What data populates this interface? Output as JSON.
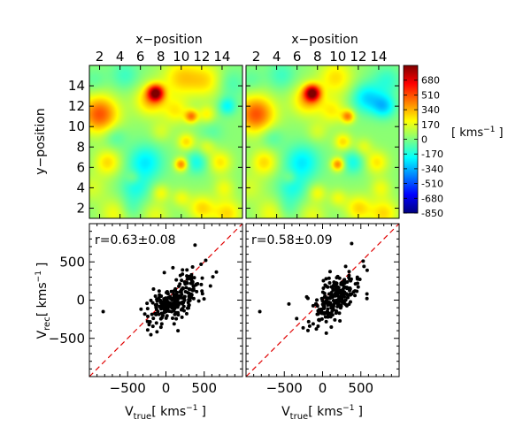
{
  "figure_size": "600x500",
  "colormap_colors": [
    "#00007f",
    "#0000ff",
    "#007fff",
    "#00ffff",
    "#7fff7f",
    "#ffff00",
    "#ff7f00",
    "#ff0000",
    "#7f0000"
  ],
  "mark_color": "#000000",
  "line_color": "#e00000",
  "chart_data": [
    {
      "type": "heatmap",
      "name": "velocity-map-left",
      "title": "",
      "xlabel": "x−position",
      "ylabel": "y−position",
      "xlim": [
        1,
        16
      ],
      "ylim": [
        1,
        16
      ],
      "xticks": [
        "2",
        "4",
        "6",
        "8",
        "10",
        "12",
        "14"
      ],
      "yticks": [
        "2",
        "4",
        "6",
        "8",
        "10",
        "12",
        "14"
      ],
      "blobs": [
        {
          "x": 2.0,
          "y": 11.2,
          "v": 480,
          "s": 1.3
        },
        {
          "x": 7.5,
          "y": 13.3,
          "v": 700,
          "s": 0.55
        },
        {
          "x": 7.0,
          "y": 12.6,
          "v": 300,
          "s": 1.1
        },
        {
          "x": 10.0,
          "y": 14.8,
          "v": 260,
          "s": 1.3
        },
        {
          "x": 12.5,
          "y": 14.5,
          "v": 220,
          "s": 1.2
        },
        {
          "x": 9.5,
          "y": 11.5,
          "v": 200,
          "s": 0.9
        },
        {
          "x": 11.0,
          "y": 11.0,
          "v": 380,
          "s": 0.45
        },
        {
          "x": 12.5,
          "y": 11.2,
          "v": 200,
          "s": 0.6
        },
        {
          "x": 14.5,
          "y": 12.0,
          "v": -230,
          "s": 0.6
        },
        {
          "x": 14.8,
          "y": 14.2,
          "v": -120,
          "s": 1.0
        },
        {
          "x": 4.5,
          "y": 15.0,
          "v": -130,
          "s": 1.0
        },
        {
          "x": 1.5,
          "y": 14.5,
          "v": -80,
          "s": 0.8
        },
        {
          "x": 2.8,
          "y": 6.5,
          "v": 250,
          "s": 0.9
        },
        {
          "x": 1.3,
          "y": 4.0,
          "v": 120,
          "s": 1.0
        },
        {
          "x": 5.3,
          "y": 5.0,
          "v": 120,
          "s": 0.5
        },
        {
          "x": 6.5,
          "y": 6.5,
          "v": -260,
          "s": 1.2
        },
        {
          "x": 5.5,
          "y": 4.0,
          "v": -180,
          "s": 1.0
        },
        {
          "x": 3.5,
          "y": 9.0,
          "v": -120,
          "s": 0.8
        },
        {
          "x": 10.0,
          "y": 6.3,
          "v": 420,
          "s": 0.45
        },
        {
          "x": 10.5,
          "y": 8.5,
          "v": 250,
          "s": 0.6
        },
        {
          "x": 11.5,
          "y": 6.5,
          "v": -200,
          "s": 0.8
        },
        {
          "x": 12.5,
          "y": 8.0,
          "v": 150,
          "s": 0.6
        },
        {
          "x": 13.8,
          "y": 6.5,
          "v": 230,
          "s": 0.8
        },
        {
          "x": 8.0,
          "y": 3.5,
          "v": 180,
          "s": 0.6
        },
        {
          "x": 10.0,
          "y": 3.0,
          "v": 160,
          "s": 0.6
        },
        {
          "x": 14.2,
          "y": 4.0,
          "v": 160,
          "s": 0.7
        },
        {
          "x": 12.0,
          "y": 2.0,
          "v": 250,
          "s": 0.9
        },
        {
          "x": 14.5,
          "y": 1.5,
          "v": 250,
          "s": 1.0
        },
        {
          "x": 3.5,
          "y": 1.5,
          "v": 180,
          "s": 1.0
        },
        {
          "x": 7.5,
          "y": 1.3,
          "v": 150,
          "s": 0.9
        },
        {
          "x": 5.0,
          "y": 2.0,
          "v": -100,
          "s": 0.8
        },
        {
          "x": 8.0,
          "y": 9.5,
          "v": 120,
          "s": 0.7
        },
        {
          "x": 13.0,
          "y": 9.5,
          "v": -80,
          "s": 0.8
        }
      ]
    },
    {
      "type": "heatmap",
      "name": "velocity-map-right",
      "title": "",
      "xlabel": "x−position",
      "ylabel": "",
      "xlim": [
        1,
        16
      ],
      "ylim": [
        1,
        16
      ],
      "xticks": [
        "2",
        "4",
        "6",
        "8",
        "10",
        "12",
        "14"
      ],
      "yticks": [],
      "blobs": [
        {
          "x": 2.0,
          "y": 11.2,
          "v": 480,
          "s": 1.3
        },
        {
          "x": 7.5,
          "y": 13.3,
          "v": 700,
          "s": 0.55
        },
        {
          "x": 7.0,
          "y": 12.6,
          "v": 300,
          "s": 1.1
        },
        {
          "x": 9.8,
          "y": 14.8,
          "v": 240,
          "s": 1.2
        },
        {
          "x": 9.5,
          "y": 11.5,
          "v": 200,
          "s": 0.9
        },
        {
          "x": 11.0,
          "y": 11.0,
          "v": 380,
          "s": 0.45
        },
        {
          "x": 12.8,
          "y": 12.8,
          "v": -280,
          "s": 1.0
        },
        {
          "x": 14.5,
          "y": 12.0,
          "v": -300,
          "s": 0.8
        },
        {
          "x": 14.8,
          "y": 14.5,
          "v": -150,
          "s": 1.0
        },
        {
          "x": 4.5,
          "y": 15.0,
          "v": -130,
          "s": 1.0
        },
        {
          "x": 1.5,
          "y": 14.5,
          "v": -80,
          "s": 0.8
        },
        {
          "x": 2.8,
          "y": 6.5,
          "v": 250,
          "s": 0.9
        },
        {
          "x": 1.3,
          "y": 4.0,
          "v": 120,
          "s": 1.0
        },
        {
          "x": 5.3,
          "y": 5.0,
          "v": 120,
          "s": 0.5
        },
        {
          "x": 6.5,
          "y": 6.5,
          "v": -260,
          "s": 1.2
        },
        {
          "x": 5.5,
          "y": 4.0,
          "v": -180,
          "s": 1.0
        },
        {
          "x": 3.5,
          "y": 9.0,
          "v": -120,
          "s": 0.8
        },
        {
          "x": 10.0,
          "y": 6.3,
          "v": 420,
          "s": 0.45
        },
        {
          "x": 10.5,
          "y": 8.5,
          "v": 250,
          "s": 0.6
        },
        {
          "x": 11.5,
          "y": 6.5,
          "v": -200,
          "s": 0.8
        },
        {
          "x": 12.5,
          "y": 8.0,
          "v": 150,
          "s": 0.6
        },
        {
          "x": 13.8,
          "y": 6.5,
          "v": 230,
          "s": 0.8
        },
        {
          "x": 8.0,
          "y": 3.5,
          "v": 180,
          "s": 0.6
        },
        {
          "x": 10.0,
          "y": 3.0,
          "v": 160,
          "s": 0.6
        },
        {
          "x": 14.2,
          "y": 4.0,
          "v": 160,
          "s": 0.7
        },
        {
          "x": 12.0,
          "y": 2.0,
          "v": 250,
          "s": 0.9
        },
        {
          "x": 14.5,
          "y": 1.5,
          "v": 250,
          "s": 1.0
        },
        {
          "x": 3.5,
          "y": 1.5,
          "v": 180,
          "s": 1.0
        },
        {
          "x": 7.5,
          "y": 1.3,
          "v": 150,
          "s": 0.9
        },
        {
          "x": 5.0,
          "y": 2.0,
          "v": -100,
          "s": 0.8
        },
        {
          "x": 8.0,
          "y": 9.5,
          "v": 120,
          "s": 0.7
        }
      ]
    },
    {
      "type": "colorbar",
      "name": "velocity-colorbar",
      "vmin": -850,
      "vmax": 850,
      "ticks": [
        680,
        510,
        340,
        170,
        0,
        -170,
        -340,
        -510,
        -680,
        -850
      ],
      "tick_labels": [
        "680",
        "510",
        "340",
        "170",
        "0",
        "-170",
        "-340",
        "-510",
        "-680",
        "-850"
      ],
      "unit_label": "[ kms",
      "unit_exp": "−1",
      "unit_close": "]"
    },
    {
      "type": "scatter",
      "name": "velocity-scatter-left",
      "annotation": "r=0.63±0.08",
      "xlabel": "V",
      "xlabel_sub": "true",
      "xlabel_unit": "[ kms",
      "xlabel_exp": "−1",
      "xlabel_close": "]",
      "ylabel": "V",
      "ylabel_sub": "rec",
      "ylabel_unit": "[ kms",
      "ylabel_exp": "−1",
      "ylabel_close": "]",
      "xlim": [
        -1000,
        1000
      ],
      "ylim": [
        -1000,
        1000
      ],
      "xticks": [
        -500,
        0,
        500
      ],
      "yticks": [
        -500,
        0,
        500
      ],
      "xtick_labels": [
        "−500",
        "0",
        "500"
      ],
      "ytick_labels": [
        "−500",
        "0",
        "500"
      ],
      "diagonal": [
        -1000,
        1000
      ],
      "seed": 7,
      "n": 230,
      "corr": 0.63,
      "xmean": 130,
      "xsd": 175,
      "ymean": 10,
      "ysd": 175,
      "extra_points": [
        [
          -820,
          -150
        ],
        [
          380,
          720
        ],
        [
          -70,
          -30
        ],
        [
          520,
          520
        ]
      ]
    },
    {
      "type": "scatter",
      "name": "velocity-scatter-right",
      "annotation": "r=0.58±0.09",
      "xlabel": "V",
      "xlabel_sub": "true",
      "xlabel_unit": "[ kms",
      "xlabel_exp": "−1",
      "xlabel_close": "]",
      "xlim": [
        -1000,
        1000
      ],
      "ylim": [
        -1000,
        1000
      ],
      "xticks": [
        -500,
        0,
        500
      ],
      "yticks": [],
      "xtick_labels": [
        "−500",
        "0",
        "500"
      ],
      "diagonal": [
        -1000,
        1000
      ],
      "seed": 13,
      "n": 230,
      "corr": 0.58,
      "xmean": 130,
      "xsd": 175,
      "ymean": 10,
      "ysd": 175,
      "extra_points": [
        [
          -820,
          -150
        ],
        [
          380,
          740
        ],
        [
          -440,
          -50
        ],
        [
          530,
          510
        ]
      ]
    }
  ]
}
